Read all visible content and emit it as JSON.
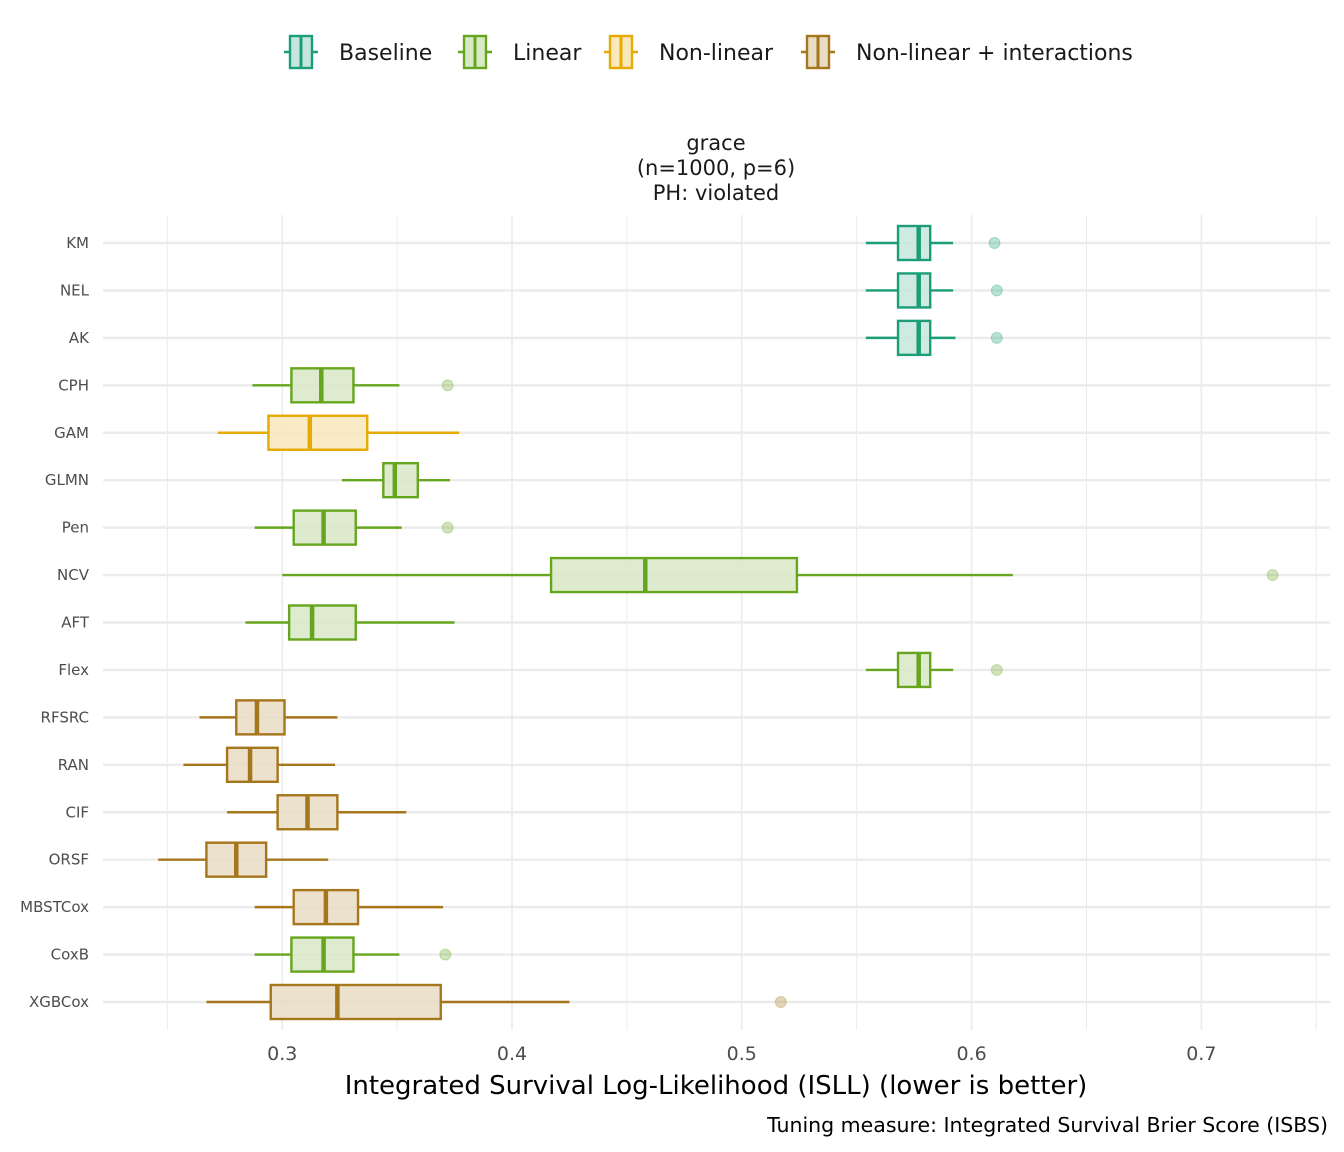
{
  "chart_data": {
    "type": "boxplot",
    "orientation": "horizontal",
    "title": [
      "grace",
      "(n=1000, p=6)",
      "PH: violated"
    ],
    "xlabel": "Integrated Survival Log-Likelihood (ISLL) (lower is better)",
    "ylabel": "",
    "caption": "Tuning measure: Integrated Survival Brier Score (ISBS)",
    "xlim": [
      0.222,
      0.756
    ],
    "x_ticks": [
      0.3,
      0.4,
      0.5,
      0.6,
      0.7
    ],
    "x_tick_labels": [
      "0.3",
      "0.4",
      "0.5",
      "0.6",
      "0.7"
    ],
    "x_minor_gridlines": [
      0.25,
      0.35,
      0.45,
      0.55,
      0.65,
      0.75
    ],
    "grid": true,
    "legend_position": "top",
    "legend": [
      {
        "name": "Baseline",
        "color": "#1b9e77",
        "fill": "#c5e6dc"
      },
      {
        "name": "Linear",
        "color": "#66a61e",
        "fill": "#d9e8c7"
      },
      {
        "name": "Non-linear",
        "color": "#e6ab02",
        "fill": "#f8e8bb"
      },
      {
        "name": "Non-linear + interactions",
        "color": "#a6761d",
        "fill": "#e9dcc4"
      }
    ],
    "categories": [
      "KM",
      "NEL",
      "AK",
      "CPH",
      "GAM",
      "GLMN",
      "Pen",
      "NCV",
      "AFT",
      "Flex",
      "RFSRC",
      "RAN",
      "CIF",
      "ORSF",
      "MBSTCox",
      "CoxB",
      "XGBCox"
    ],
    "boxes": [
      {
        "model": "KM",
        "group": "Baseline",
        "whisker_low": 0.554,
        "q1": 0.568,
        "median": 0.577,
        "q3": 0.582,
        "whisker_high": 0.592,
        "outliers": [
          0.61
        ]
      },
      {
        "model": "NEL",
        "group": "Baseline",
        "whisker_low": 0.554,
        "q1": 0.568,
        "median": 0.577,
        "q3": 0.582,
        "whisker_high": 0.592,
        "outliers": [
          0.611
        ]
      },
      {
        "model": "AK",
        "group": "Baseline",
        "whisker_low": 0.554,
        "q1": 0.568,
        "median": 0.577,
        "q3": 0.582,
        "whisker_high": 0.593,
        "outliers": [
          0.611
        ]
      },
      {
        "model": "CPH",
        "group": "Linear",
        "whisker_low": 0.287,
        "q1": 0.304,
        "median": 0.317,
        "q3": 0.331,
        "whisker_high": 0.351,
        "outliers": [
          0.372
        ]
      },
      {
        "model": "GAM",
        "group": "Non-linear",
        "whisker_low": 0.272,
        "q1": 0.294,
        "median": 0.312,
        "q3": 0.337,
        "whisker_high": 0.377,
        "outliers": []
      },
      {
        "model": "GLMN",
        "group": "Linear",
        "whisker_low": 0.326,
        "q1": 0.344,
        "median": 0.349,
        "q3": 0.359,
        "whisker_high": 0.373,
        "outliers": []
      },
      {
        "model": "Pen",
        "group": "Linear",
        "whisker_low": 0.288,
        "q1": 0.305,
        "median": 0.318,
        "q3": 0.332,
        "whisker_high": 0.352,
        "outliers": [
          0.372
        ]
      },
      {
        "model": "NCV",
        "group": "Linear",
        "whisker_low": 0.3,
        "q1": 0.417,
        "median": 0.458,
        "q3": 0.524,
        "whisker_high": 0.618,
        "outliers": [
          0.731
        ]
      },
      {
        "model": "AFT",
        "group": "Linear",
        "whisker_low": 0.284,
        "q1": 0.303,
        "median": 0.313,
        "q3": 0.332,
        "whisker_high": 0.375,
        "outliers": []
      },
      {
        "model": "Flex",
        "group": "Linear",
        "whisker_low": 0.554,
        "q1": 0.568,
        "median": 0.577,
        "q3": 0.582,
        "whisker_high": 0.592,
        "outliers": [
          0.611
        ]
      },
      {
        "model": "RFSRC",
        "group": "Non-linear + interactions",
        "whisker_low": 0.264,
        "q1": 0.28,
        "median": 0.289,
        "q3": 0.301,
        "whisker_high": 0.324,
        "outliers": []
      },
      {
        "model": "RAN",
        "group": "Non-linear + interactions",
        "whisker_low": 0.257,
        "q1": 0.276,
        "median": 0.286,
        "q3": 0.298,
        "whisker_high": 0.323,
        "outliers": []
      },
      {
        "model": "CIF",
        "group": "Non-linear + interactions",
        "whisker_low": 0.276,
        "q1": 0.298,
        "median": 0.311,
        "q3": 0.324,
        "whisker_high": 0.354,
        "outliers": []
      },
      {
        "model": "ORSF",
        "group": "Non-linear + interactions",
        "whisker_low": 0.246,
        "q1": 0.267,
        "median": 0.28,
        "q3": 0.293,
        "whisker_high": 0.32,
        "outliers": []
      },
      {
        "model": "MBSTCox",
        "group": "Non-linear + interactions",
        "whisker_low": 0.288,
        "q1": 0.305,
        "median": 0.319,
        "q3": 0.333,
        "whisker_high": 0.37,
        "outliers": []
      },
      {
        "model": "CoxB",
        "group": "Linear",
        "whisker_low": 0.288,
        "q1": 0.304,
        "median": 0.318,
        "q3": 0.331,
        "whisker_high": 0.351,
        "outliers": [
          0.371
        ]
      },
      {
        "model": "XGBCox",
        "group": "Non-linear + interactions",
        "whisker_low": 0.267,
        "q1": 0.295,
        "median": 0.324,
        "q3": 0.369,
        "whisker_high": 0.425,
        "outliers": [
          0.517
        ]
      }
    ]
  }
}
